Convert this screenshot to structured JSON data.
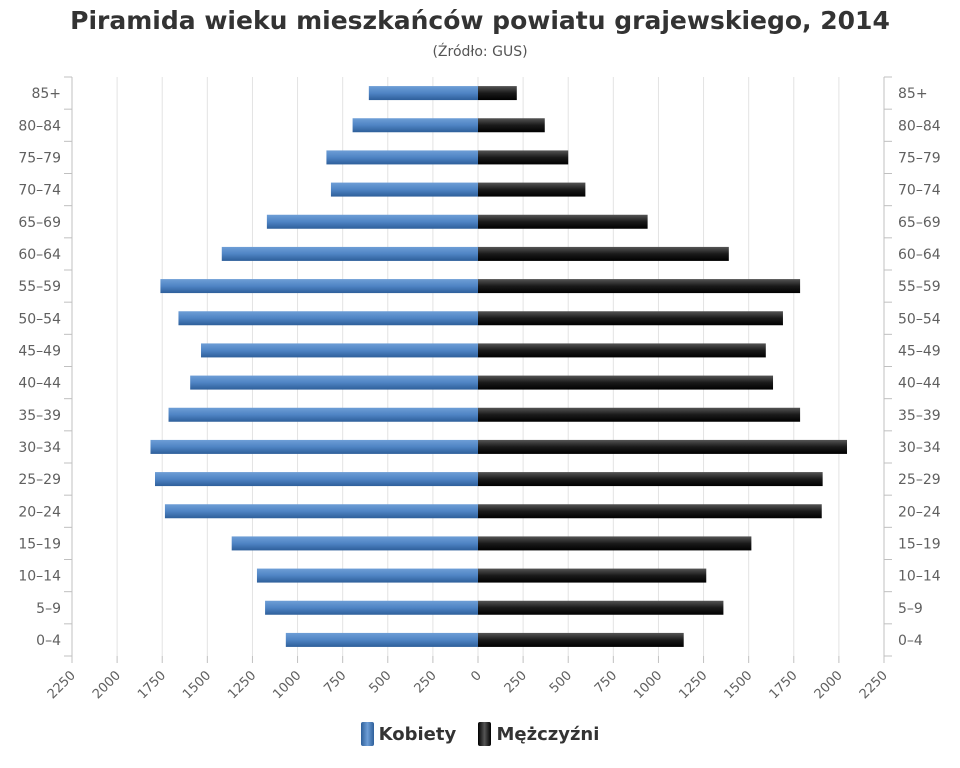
{
  "chart_data": {
    "type": "bar",
    "orientation": "horizontal",
    "title": "Piramida wieku mieszkańców powiatu grajewskiego, 2014",
    "subtitle": "(Źródło: GUS)",
    "categories": [
      "85+",
      "80–84",
      "75–79",
      "70–74",
      "65–69",
      "60–64",
      "55–59",
      "50–54",
      "45–49",
      "40–44",
      "35–39",
      "30–34",
      "25–29",
      "20–24",
      "15–19",
      "10–14",
      "5–9",
      "0–4"
    ],
    "series": [
      {
        "name": "Kobiety",
        "side": "left",
        "color": "#4F84C4",
        "values": [
          605,
          695,
          840,
          815,
          1170,
          1420,
          1760,
          1660,
          1535,
          1595,
          1715,
          1815,
          1790,
          1735,
          1365,
          1225,
          1180,
          1065
        ]
      },
      {
        "name": "Mężczyźni",
        "side": "right",
        "color": "#1A1A1A",
        "values": [
          215,
          370,
          500,
          595,
          940,
          1390,
          1785,
          1690,
          1595,
          1635,
          1785,
          2045,
          1910,
          1905,
          1515,
          1265,
          1360,
          1140
        ]
      }
    ],
    "xlim": [
      -2250,
      2250
    ],
    "xticks": [
      "2250",
      "2000",
      "1750",
      "1500",
      "1250",
      "1000",
      "750",
      "500",
      "250",
      "0",
      "250",
      "500",
      "750",
      "1000",
      "1250",
      "1500",
      "1750",
      "2000",
      "2250"
    ],
    "grid": true,
    "legend_position": "bottom"
  }
}
